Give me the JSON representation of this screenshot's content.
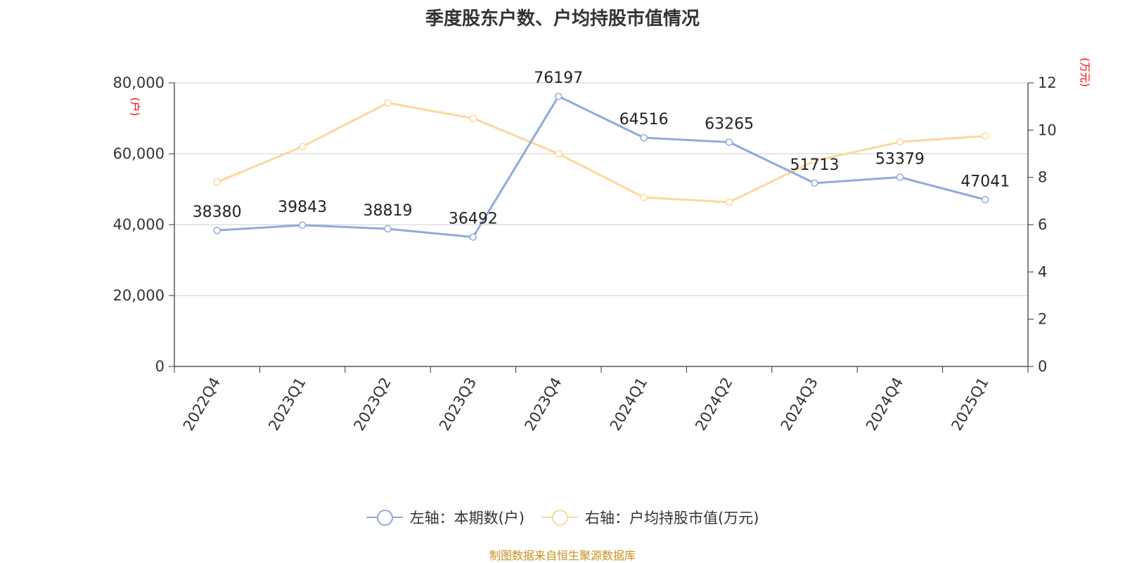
{
  "title": "季度股东户数、户均持股市值情况",
  "source": "制图数据来自恒生聚源数据库",
  "source_color": "#c8901e",
  "colors": {
    "left_series": "#8eaadb",
    "right_series": "#fcd89a",
    "axis_unit": "#ff0000",
    "grid": "#cccccc",
    "text": "#333333"
  },
  "chart_data": {
    "type": "line",
    "categories": [
      "2022Q4",
      "2023Q1",
      "2023Q2",
      "2023Q3",
      "2023Q4",
      "2024Q1",
      "2024Q2",
      "2024Q3",
      "2024Q4",
      "2025Q1"
    ],
    "left_axis": {
      "unit": "(户)",
      "min": 0,
      "max": 80000,
      "ticks": [
        "0",
        "20,000",
        "40,000",
        "60,000",
        "80,000"
      ]
    },
    "right_axis": {
      "unit": "(万元)",
      "min": 0,
      "max": 12,
      "ticks": [
        "0",
        "2",
        "4",
        "6",
        "8",
        "10",
        "12"
      ]
    },
    "grid": true,
    "legend_position": "bottom",
    "series": [
      {
        "name": "左轴：本期数(户)",
        "axis": "left",
        "values": [
          38380,
          39843,
          38819,
          36492,
          76197,
          64516,
          63265,
          51713,
          53379,
          47041
        ],
        "labels": [
          "38380",
          "39843",
          "38819",
          "36492",
          "76197",
          "64516",
          "63265",
          "51713",
          "53379",
          "47041"
        ]
      },
      {
        "name": "右轴：户均持股市值(万元)",
        "axis": "right",
        "values": [
          7.8,
          9.3,
          11.15,
          10.5,
          9.0,
          7.15,
          6.95,
          8.7,
          9.5,
          9.75
        ]
      }
    ]
  }
}
